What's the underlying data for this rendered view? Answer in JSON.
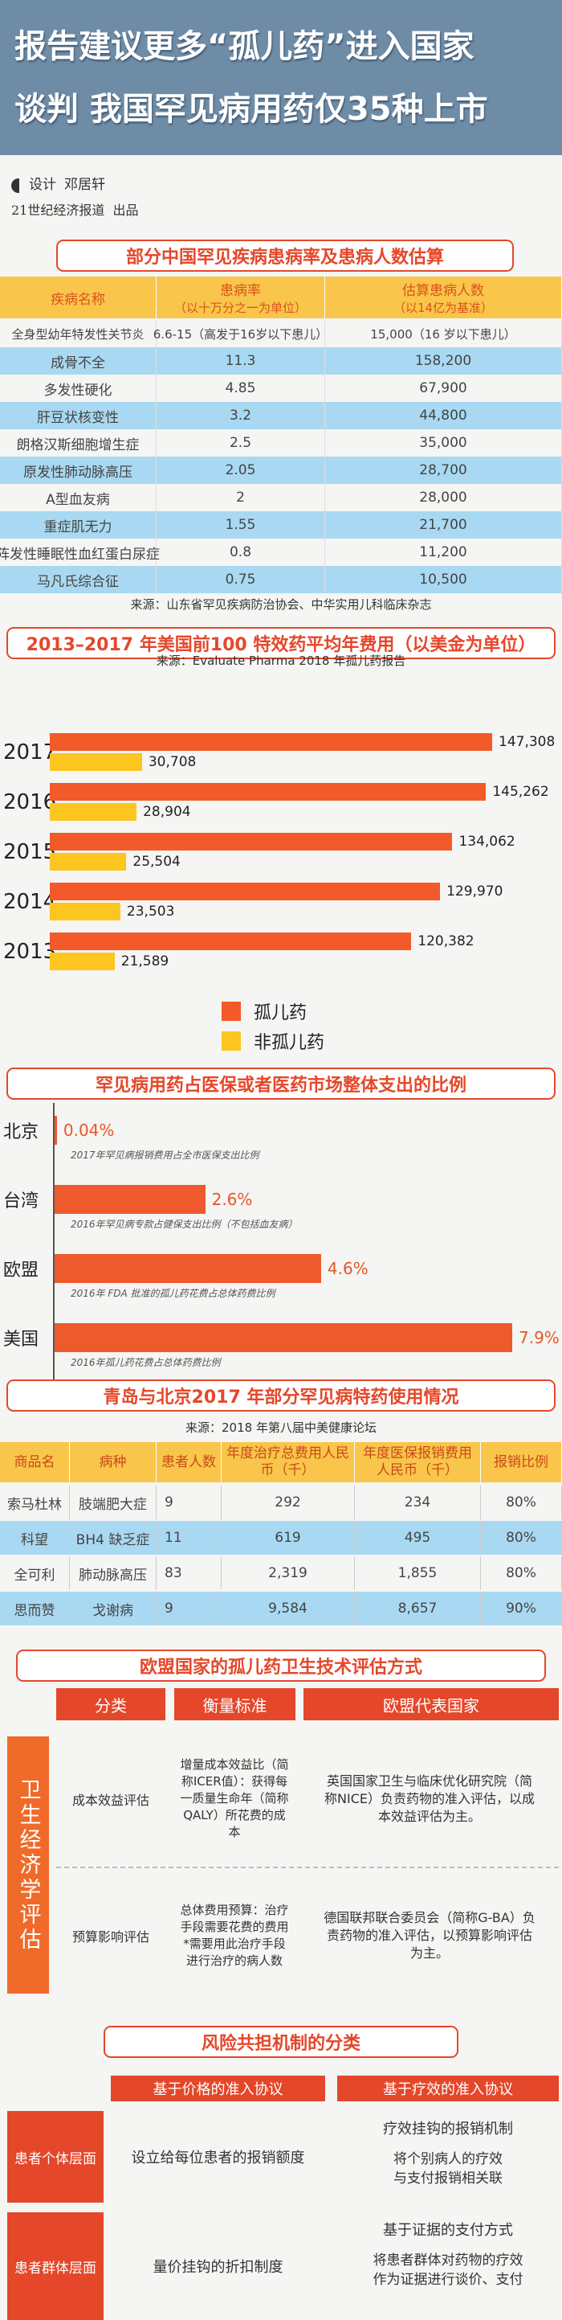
{
  "header": {
    "title_lines": [
      "报告建议更多“孤儿药”进入国家",
      "谈判 我国罕见病用药仅35种上市"
    ],
    "designer_label": "设计",
    "designer": "邓居轩",
    "publisher": "21世纪经济报道  出品"
  },
  "prevalence_table": {
    "title": "部分中国罕见疾病患病率及患病人数估算",
    "columns": [
      {
        "label": "疾病名称"
      },
      {
        "label": "患病率",
        "note": "（以十万分之一为单位）"
      },
      {
        "label": "估算患病人数",
        "note": "（以14亿为基准）"
      }
    ],
    "rows": [
      [
        "全身型幼年特发性关节炎",
        "6.6-15（高发于16岁以下患儿）",
        "15,000（16 岁以下患儿）"
      ],
      [
        "成骨不全",
        "11.3",
        "158,200"
      ],
      [
        "多发性硬化",
        "4.85",
        "67,900"
      ],
      [
        "肝豆状核变性",
        "3.2",
        "44,800"
      ],
      [
        "朗格汉斯细胞增生症",
        "2.5",
        "35,000"
      ],
      [
        "原发性肺动脉高压",
        "2.05",
        "28,700"
      ],
      [
        "A型血友病",
        "2",
        "28,000"
      ],
      [
        "重症肌无力",
        "1.55",
        "21,700"
      ],
      [
        "阵发性睡眠性血红蛋白尿症",
        "0.8",
        "11,200"
      ],
      [
        "马凡氏综合征",
        "0.75",
        "10,500"
      ]
    ],
    "source": "来源：山东省罕见疾病防治协会、中华实用儿科临床杂志"
  },
  "chart_data": [
    {
      "type": "bar",
      "orientation": "horizontal",
      "title": "2013–2017 年美国前100 特效药平均年费用（以美金为单位）",
      "subtitle": "来源：Evaluate Pharma 2018 年孤儿药报告",
      "categories": [
        "2017",
        "2016",
        "2015",
        "2014",
        "2013"
      ],
      "series": [
        {
          "name": "孤儿药",
          "color": "#f25a29",
          "values": [
            147308,
            145262,
            134062,
            129970,
            120382
          ],
          "value_labels": [
            "147,308",
            "145,262",
            "134,062",
            "129,970",
            "120,382"
          ]
        },
        {
          "name": "非孤儿药",
          "color": "#fcc520",
          "values": [
            30708,
            28904,
            25504,
            23503,
            21589
          ],
          "value_labels": [
            "30,708",
            "28,904",
            "25,504",
            "23,503",
            "21,589"
          ]
        }
      ]
    },
    {
      "type": "bar",
      "orientation": "horizontal",
      "title": "罕见病用药占医保或者医药市场整体支出的比例",
      "categories": [
        "北京",
        "台湾",
        "欧盟",
        "美国"
      ],
      "values": [
        0.04,
        2.6,
        4.6,
        7.9
      ],
      "value_labels": [
        "0.04%",
        "2.6%",
        "4.6%",
        "7.9%"
      ],
      "notes": [
        "2017年罕见病报销费用占全市医保支出比例",
        "2016年罕见病专款占健保支出比例（不包括血友病）",
        "2016年 FDA 批准的孤儿药花费占总体药费比例",
        "2016年孤儿药花费占总体药费比例"
      ],
      "color": "#ee5a2c"
    }
  ],
  "drug_table": {
    "title": "青岛与北京2017 年部分罕见病特药使用情况",
    "source": "来源：2018 年第八届中美健康论坛",
    "columns": [
      "商品名",
      "病种",
      "患者人数",
      "年度治疗总费用人民币（千）",
      "年度医保报销费用人民币（千）",
      "报销比例"
    ],
    "rows": [
      [
        "索马杜林",
        "肢端肥大症",
        "9",
        "292",
        "234",
        "80%"
      ],
      [
        "科望",
        "BH4 缺乏症",
        "11",
        "619",
        "495",
        "80%"
      ],
      [
        "全可利",
        "肺动脉高压",
        "83",
        "2,319",
        "1,855",
        "80%"
      ],
      [
        "思而赞",
        "戈谢病",
        "9",
        "9,584",
        "8,657",
        "90%"
      ]
    ]
  },
  "hta": {
    "title": "欧盟国家的孤儿药卫生技术评估方式",
    "columns": [
      "分类",
      "衡量标准",
      "欧盟代表国家"
    ],
    "group": "卫生经济学评估",
    "rows": [
      {
        "category": "成本效益评估",
        "measure": "增量成本效益比（简称ICER值）：获得每一质量生命年（简称QALY）所花费的成本",
        "country": "英国国家卫生与临床优化研究院（简称NICE）负责药物的准入评估，以成本效益评估为主。"
      },
      {
        "category": "预算影响评估",
        "measure": "总体费用预算：治疗手段需要花费的费用*需要用此治疗手段进行治疗的病人数",
        "country": "德国联邦联合委员会（简称G-BA）负责药物的准入评估，以预算影响评估为主。"
      }
    ]
  },
  "risk_sharing": {
    "title": "风险共担机制的分类",
    "columns": [
      "基于价格的准入协议",
      "基于疗效的准入协议"
    ],
    "rows": [
      {
        "level": "患者个体层面",
        "price": "设立给每位患者的报销额度",
        "efficacy": {
          "heading": "疗效挂钩的报销机制",
          "detail": "将个别病人的疗效与支付报销相关联"
        }
      },
      {
        "level": "患者群体层面",
        "price": "量价挂钩的折扣制度",
        "efficacy": {
          "heading": "基于证据的支付方式",
          "detail": "将患者群体对药物的疗效作为证据进行谈价、支付"
        }
      }
    ]
  }
}
